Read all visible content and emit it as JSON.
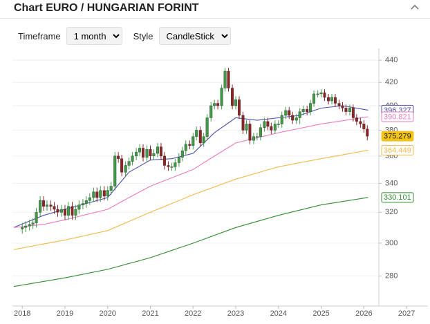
{
  "chart_data": {
    "type": "candlestick",
    "title": "Chart EURO / HUNGARIAN FORINT",
    "yscale": "log",
    "ylim": [
      263,
      451
    ],
    "yticks": [
      280,
      300,
      320,
      340,
      360,
      380,
      400,
      420,
      440
    ],
    "xlim": [
      2017.77,
      2027.5
    ],
    "xticks": [
      2018,
      2019,
      2020,
      2021,
      2022,
      2023,
      2024,
      2025,
      2026,
      2027
    ],
    "grid": true,
    "up_color": "#3f9b45",
    "down_color": "#8e2424",
    "last_color": "#f2c318",
    "x": [
      2018.0,
      2018.08,
      2018.17,
      2018.25,
      2018.33,
      2018.42,
      2018.5,
      2018.58,
      2018.67,
      2018.75,
      2018.83,
      2018.92,
      2019.0,
      2019.08,
      2019.17,
      2019.25,
      2019.33,
      2019.42,
      2019.5,
      2019.58,
      2019.67,
      2019.75,
      2019.83,
      2019.92,
      2020.0,
      2020.08,
      2020.17,
      2020.25,
      2020.33,
      2020.42,
      2020.5,
      2020.58,
      2020.67,
      2020.75,
      2020.83,
      2020.92,
      2021.0,
      2021.08,
      2021.17,
      2021.25,
      2021.33,
      2021.42,
      2021.5,
      2021.58,
      2021.67,
      2021.75,
      2021.83,
      2021.92,
      2022.0,
      2022.08,
      2022.17,
      2022.25,
      2022.33,
      2022.42,
      2022.5,
      2022.58,
      2022.67,
      2022.75,
      2022.83,
      2022.92,
      2023.0,
      2023.08,
      2023.17,
      2023.25,
      2023.33,
      2023.42,
      2023.5,
      2023.58,
      2023.67,
      2023.75,
      2023.83,
      2023.92,
      2024.0,
      2024.08,
      2024.17,
      2024.25,
      2024.33,
      2024.42,
      2024.5,
      2024.58,
      2024.67,
      2024.75,
      2024.83,
      2024.92,
      2025.0,
      2025.08,
      2025.17,
      2025.25,
      2025.33,
      2025.42,
      2025.5,
      2025.58,
      2025.67,
      2025.75,
      2025.83,
      2025.92,
      2026.0,
      2026.08
    ],
    "open": [
      309,
      310,
      311,
      312,
      313,
      320,
      328,
      324,
      325,
      324,
      322,
      320,
      322,
      318,
      324,
      318,
      322,
      325,
      326,
      328,
      330,
      334,
      330,
      335,
      331,
      335,
      338,
      360,
      358,
      348,
      353,
      356,
      360,
      363,
      366,
      359,
      365,
      360,
      362,
      367,
      360,
      353,
      352,
      352,
      355,
      359,
      364,
      369,
      368,
      375,
      380,
      370,
      375,
      390,
      400,
      402,
      400,
      415,
      430,
      415,
      400,
      405,
      392,
      380,
      385,
      372,
      375,
      375,
      382,
      387,
      383,
      380,
      385,
      385,
      392,
      396,
      392,
      388,
      390,
      395,
      397,
      395,
      402,
      410,
      410,
      411,
      407,
      404,
      407,
      402,
      400,
      398,
      395,
      398,
      390,
      387,
      385,
      381
    ],
    "high": [
      313,
      314,
      315,
      316,
      323,
      331,
      331,
      328,
      328,
      327,
      325,
      325,
      325,
      327,
      327,
      325,
      328,
      329,
      331,
      333,
      337,
      337,
      338,
      338,
      338,
      341,
      363,
      363,
      361,
      356,
      359,
      363,
      366,
      369,
      369,
      368,
      368,
      365,
      370,
      370,
      363,
      356,
      355,
      358,
      362,
      367,
      372,
      372,
      378,
      383,
      383,
      378,
      393,
      403,
      405,
      405,
      418,
      433,
      433,
      418,
      408,
      408,
      395,
      388,
      388,
      378,
      378,
      385,
      390,
      390,
      386,
      388,
      388,
      395,
      399,
      399,
      395,
      393,
      398,
      400,
      400,
      405,
      413,
      413,
      414,
      414,
      410,
      410,
      410,
      405,
      403,
      401,
      401,
      401,
      393,
      390,
      388,
      384
    ],
    "low": [
      306,
      307,
      308,
      309,
      310,
      317,
      321,
      321,
      321,
      319,
      317,
      317,
      315,
      315,
      315,
      315,
      319,
      322,
      323,
      325,
      327,
      327,
      327,
      328,
      328,
      332,
      335,
      355,
      345,
      345,
      350,
      353,
      357,
      360,
      356,
      356,
      357,
      357,
      359,
      357,
      350,
      349,
      349,
      349,
      352,
      356,
      361,
      365,
      365,
      372,
      367,
      367,
      372,
      387,
      397,
      397,
      397,
      412,
      412,
      397,
      397,
      389,
      377,
      377,
      369,
      369,
      372,
      372,
      379,
      380,
      377,
      377,
      382,
      382,
      389,
      389,
      385,
      385,
      385,
      392,
      392,
      392,
      399,
      407,
      407,
      404,
      401,
      401,
      399,
      397,
      395,
      392,
      392,
      387,
      384,
      382,
      378,
      372
    ],
    "close": [
      310,
      311,
      312,
      313,
      320,
      328,
      324,
      325,
      324,
      322,
      320,
      322,
      318,
      324,
      318,
      322,
      325,
      326,
      328,
      330,
      334,
      330,
      335,
      331,
      335,
      338,
      360,
      358,
      348,
      353,
      356,
      360,
      363,
      366,
      359,
      365,
      360,
      362,
      367,
      360,
      353,
      352,
      352,
      355,
      359,
      364,
      369,
      368,
      375,
      380,
      370,
      375,
      390,
      400,
      402,
      400,
      415,
      430,
      415,
      400,
      405,
      392,
      380,
      385,
      372,
      375,
      375,
      382,
      387,
      383,
      380,
      385,
      385,
      392,
      396,
      392,
      388,
      390,
      395,
      397,
      395,
      402,
      410,
      410,
      411,
      407,
      404,
      407,
      402,
      400,
      398,
      395,
      398,
      390,
      387,
      385,
      381,
      375.279
    ],
    "series": [
      {
        "color": "#4a4fae",
        "x": [
          2017.8,
          2018.5,
          2019,
          2019.5,
          2020,
          2020.5,
          2021,
          2021.5,
          2022,
          2022.5,
          2023,
          2023.5,
          2024,
          2024.5,
          2025,
          2025.5,
          2026.1
        ],
        "values": [
          310,
          318,
          322,
          326,
          330,
          348,
          357,
          358,
          362,
          378,
          390,
          388,
          390,
          392,
          398,
          400,
          396.327
        ]
      },
      {
        "color": "#e879c0",
        "x": [
          2017.8,
          2018.5,
          2019,
          2020,
          2020.5,
          2021,
          2022,
          2022.5,
          2023,
          2024,
          2025,
          2026.1
        ],
        "values": [
          310,
          312,
          315,
          322,
          330,
          338,
          350,
          360,
          370,
          378,
          385,
          390.821
        ]
      },
      {
        "color": "#f2b84b",
        "x": [
          2017.8,
          2019,
          2020,
          2021,
          2022,
          2023,
          2024,
          2025,
          2026.1
        ],
        "values": [
          296,
          302,
          308,
          320,
          332,
          343,
          352,
          358,
          364.449
        ]
      },
      {
        "color": "#2e8b2e",
        "x": [
          2017.8,
          2019,
          2020,
          2021,
          2022,
          2023,
          2024,
          2025,
          2026.1
        ],
        "values": [
          274,
          279,
          284,
          291,
          300,
          310,
          318,
          325,
          330.101
        ]
      }
    ]
  },
  "controls": {
    "timeframe_label": "Timeframe",
    "timeframe": "1 month",
    "style_label": "Style",
    "style": "CandleStick"
  }
}
